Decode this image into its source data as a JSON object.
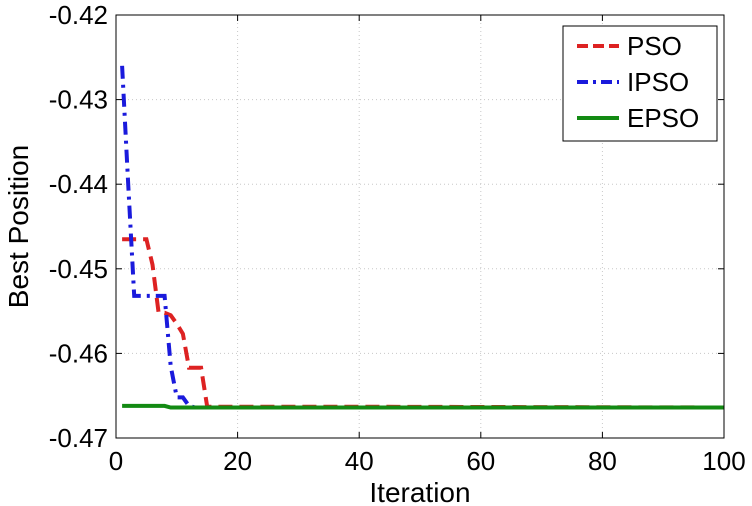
{
  "chart_data": {
    "type": "line",
    "title": "",
    "xlabel": "Iteration",
    "ylabel": "Best Position",
    "xlim": [
      0,
      100
    ],
    "ylim": [
      -0.47,
      -0.42
    ],
    "x_ticks": [
      0,
      20,
      40,
      60,
      80,
      100
    ],
    "y_ticks": [
      -0.47,
      -0.46,
      -0.45,
      -0.44,
      -0.43,
      -0.42
    ],
    "x_tick_labels": [
      "0",
      "20",
      "40",
      "60",
      "80",
      "100"
    ],
    "y_tick_labels": [
      "-0.47",
      "-0.46",
      "-0.45",
      "-0.44",
      "-0.43",
      "-0.42"
    ],
    "grid": true,
    "legend_position": "top-right",
    "series": [
      {
        "name": "PSO",
        "color": "#dd2222",
        "style": "dashed",
        "x": [
          1,
          5,
          6,
          7,
          8,
          9,
          10,
          11,
          12,
          13,
          14,
          15,
          16,
          38,
          100
        ],
        "y": [
          -0.4465,
          -0.4465,
          -0.4495,
          -0.4552,
          -0.4552,
          -0.4555,
          -0.4565,
          -0.4577,
          -0.4617,
          -0.4617,
          -0.4617,
          -0.4663,
          -0.4663,
          -0.4663,
          -0.4664
        ]
      },
      {
        "name": "IPSO",
        "color": "#1a1adc",
        "style": "dashdot",
        "x": [
          1,
          2,
          3,
          7,
          8,
          9,
          10,
          11,
          12,
          13,
          100
        ],
        "y": [
          -0.426,
          -0.44,
          -0.4532,
          -0.4532,
          -0.4532,
          -0.4615,
          -0.4652,
          -0.4652,
          -0.4662,
          -0.4664,
          -0.4664
        ]
      },
      {
        "name": "EPSO",
        "color": "#138a13",
        "style": "solid",
        "x": [
          1,
          8,
          9,
          100
        ],
        "y": [
          -0.4662,
          -0.4662,
          -0.4664,
          -0.4664
        ]
      }
    ]
  }
}
